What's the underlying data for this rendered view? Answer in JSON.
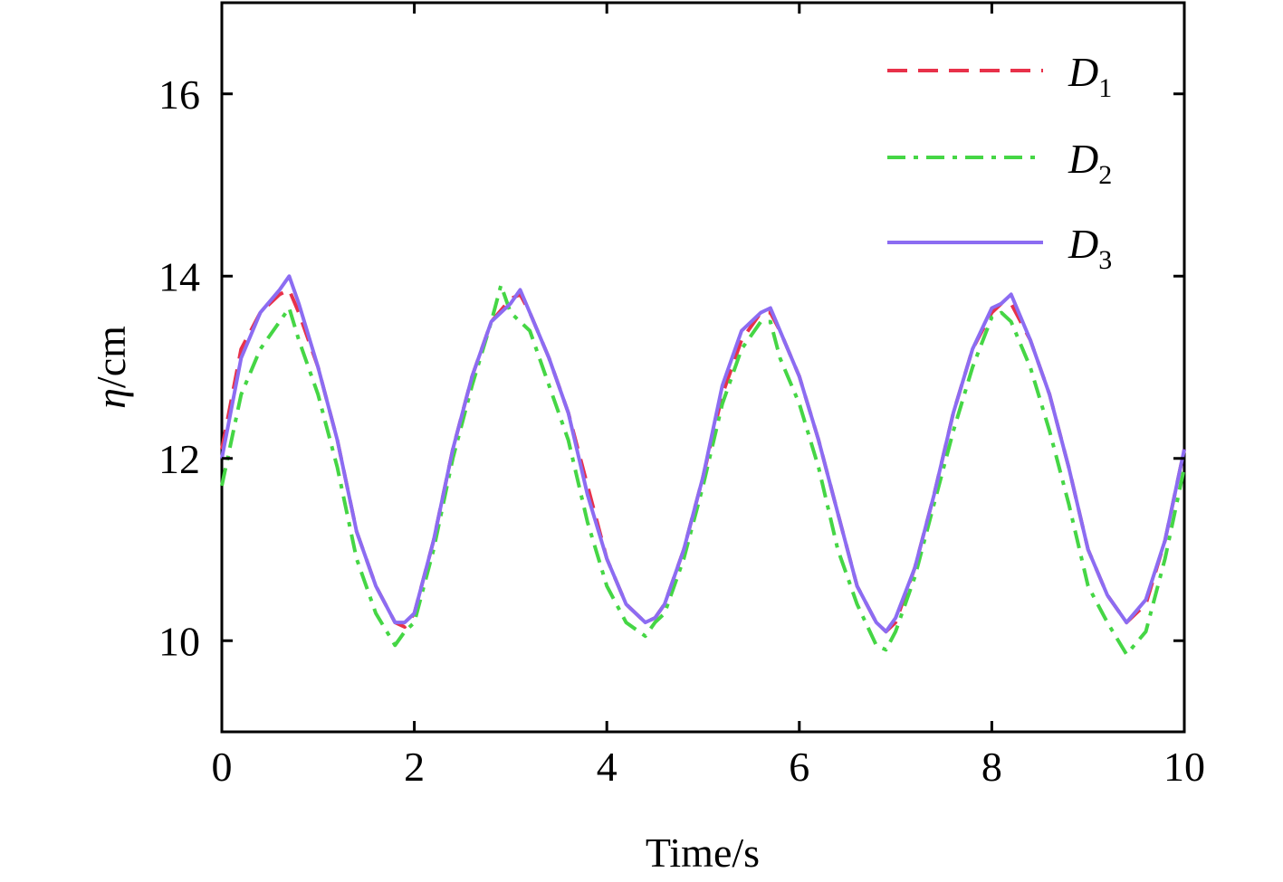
{
  "chart_data": {
    "type": "line",
    "xlabel": "Time/s",
    "ylabel_symbol": "η",
    "ylabel_unit": "/cm",
    "xlim": [
      0,
      10
    ],
    "ylim": [
      9,
      17
    ],
    "xticks": [
      0,
      2,
      4,
      6,
      8,
      10
    ],
    "yticks": [
      10,
      12,
      14,
      16
    ],
    "xtick_labels": [
      "0",
      "2",
      "4",
      "6",
      "8",
      "10"
    ],
    "ytick_labels": [
      "10",
      "12",
      "14",
      "16"
    ],
    "grid": false,
    "legend_position": "top-right",
    "series": [
      {
        "name": "D",
        "sub": "1",
        "color": "#e8314a",
        "dash": "dashed",
        "x": [
          0,
          0.2,
          0.4,
          0.6,
          0.7,
          0.8,
          1.0,
          1.2,
          1.4,
          1.6,
          1.8,
          1.9,
          2.0,
          2.2,
          2.4,
          2.6,
          2.8,
          3.0,
          3.1,
          3.2,
          3.4,
          3.6,
          3.8,
          4.0,
          4.2,
          4.4,
          4.5,
          4.6,
          4.8,
          5.0,
          5.2,
          5.4,
          5.6,
          5.7,
          5.8,
          6.0,
          6.2,
          6.4,
          6.6,
          6.8,
          6.9,
          7.0,
          7.2,
          7.4,
          7.6,
          7.8,
          8.0,
          8.1,
          8.2,
          8.4,
          8.6,
          8.8,
          9.0,
          9.2,
          9.4,
          9.6,
          9.8,
          10.0
        ],
        "y": [
          12.1,
          13.2,
          13.6,
          13.8,
          13.85,
          13.6,
          13.0,
          12.2,
          11.2,
          10.6,
          10.2,
          10.15,
          10.3,
          11.1,
          12.1,
          12.9,
          13.5,
          13.75,
          13.8,
          13.6,
          13.1,
          12.5,
          11.7,
          10.9,
          10.4,
          10.2,
          10.25,
          10.4,
          11.0,
          11.8,
          12.7,
          13.3,
          13.6,
          13.6,
          13.4,
          12.9,
          12.2,
          11.4,
          10.6,
          10.2,
          10.1,
          10.2,
          10.8,
          11.6,
          12.5,
          13.2,
          13.6,
          13.7,
          13.7,
          13.3,
          12.7,
          11.9,
          11.0,
          10.5,
          10.2,
          10.4,
          11.1,
          12.1
        ]
      },
      {
        "name": "D",
        "sub": "2",
        "color": "#45d645",
        "dash": "dashdot",
        "x": [
          0,
          0.2,
          0.4,
          0.6,
          0.7,
          0.8,
          1.0,
          1.2,
          1.4,
          1.6,
          1.8,
          1.9,
          2.0,
          2.2,
          2.4,
          2.6,
          2.8,
          2.9,
          3.0,
          3.2,
          3.4,
          3.6,
          3.8,
          4.0,
          4.2,
          4.4,
          4.5,
          4.6,
          4.8,
          5.0,
          5.2,
          5.4,
          5.6,
          5.7,
          5.8,
          6.0,
          6.2,
          6.4,
          6.6,
          6.8,
          6.9,
          7.0,
          7.2,
          7.4,
          7.6,
          7.8,
          8.0,
          8.1,
          8.2,
          8.4,
          8.6,
          8.8,
          9.0,
          9.2,
          9.4,
          9.6,
          9.8,
          10.0
        ],
        "y": [
          11.7,
          12.7,
          13.2,
          13.5,
          13.65,
          13.3,
          12.7,
          11.9,
          10.9,
          10.3,
          9.95,
          10.1,
          10.2,
          11.0,
          12.0,
          12.8,
          13.5,
          13.9,
          13.6,
          13.4,
          12.8,
          12.2,
          11.3,
          10.6,
          10.2,
          10.05,
          10.2,
          10.3,
          10.9,
          11.7,
          12.6,
          13.2,
          13.5,
          13.5,
          13.1,
          12.6,
          11.9,
          11.0,
          10.4,
          9.95,
          9.9,
          10.1,
          10.7,
          11.5,
          12.3,
          13.0,
          13.55,
          13.6,
          13.5,
          13.0,
          12.3,
          11.5,
          10.6,
          10.2,
          9.85,
          10.1,
          10.9,
          11.9
        ]
      },
      {
        "name": "D",
        "sub": "3",
        "color": "#8c6cf2",
        "dash": "solid",
        "x": [
          0,
          0.2,
          0.4,
          0.6,
          0.7,
          0.8,
          1.0,
          1.2,
          1.4,
          1.6,
          1.8,
          1.9,
          2.0,
          2.2,
          2.4,
          2.6,
          2.8,
          3.0,
          3.1,
          3.2,
          3.4,
          3.6,
          3.8,
          4.0,
          4.2,
          4.4,
          4.5,
          4.6,
          4.8,
          5.0,
          5.2,
          5.4,
          5.6,
          5.7,
          5.8,
          6.0,
          6.2,
          6.4,
          6.6,
          6.8,
          6.9,
          7.0,
          7.2,
          7.4,
          7.6,
          7.8,
          8.0,
          8.1,
          8.2,
          8.4,
          8.6,
          8.8,
          9.0,
          9.2,
          9.4,
          9.6,
          9.8,
          10.0
        ],
        "y": [
          12.0,
          13.1,
          13.6,
          13.85,
          14.0,
          13.7,
          13.0,
          12.2,
          11.2,
          10.6,
          10.2,
          10.2,
          10.3,
          11.1,
          12.1,
          12.9,
          13.5,
          13.7,
          13.85,
          13.6,
          13.1,
          12.5,
          11.6,
          10.9,
          10.4,
          10.2,
          10.25,
          10.4,
          11.0,
          11.8,
          12.8,
          13.4,
          13.6,
          13.65,
          13.4,
          12.9,
          12.2,
          11.4,
          10.6,
          10.2,
          10.1,
          10.25,
          10.8,
          11.6,
          12.5,
          13.2,
          13.65,
          13.7,
          13.8,
          13.3,
          12.7,
          11.9,
          11.0,
          10.5,
          10.2,
          10.45,
          11.1,
          12.1
        ]
      }
    ]
  }
}
